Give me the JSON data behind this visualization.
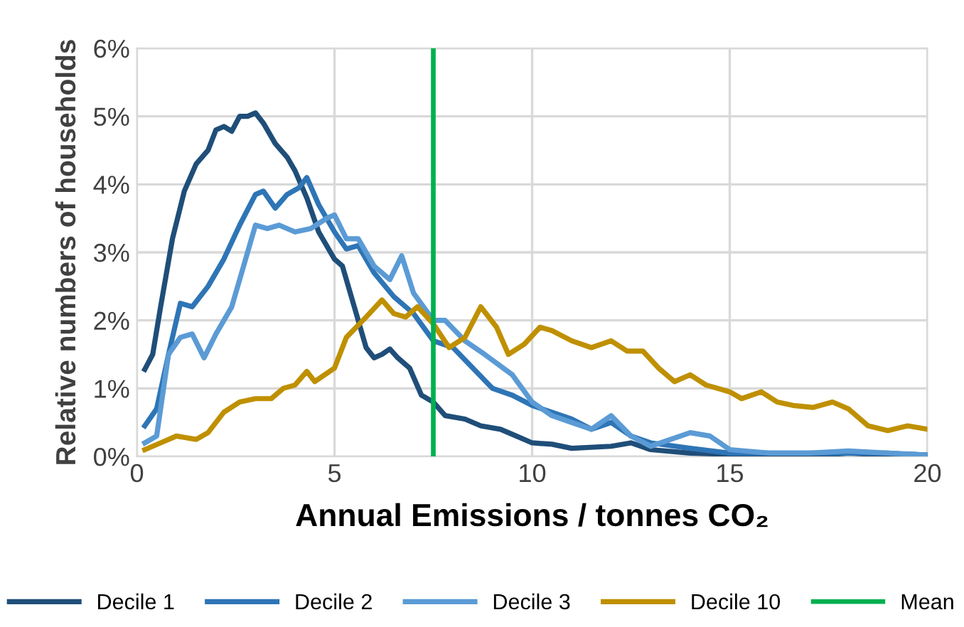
{
  "chart_data": {
    "type": "line",
    "xlabel": "Annual Emissions / tonnes CO₂",
    "ylabel": "Relative numbers of households",
    "xlim": [
      0,
      20
    ],
    "xticks": [
      0,
      5,
      10,
      15,
      20
    ],
    "ylim": [
      0,
      6
    ],
    "yticks": [
      {
        "value": 0,
        "label": "0%"
      },
      {
        "value": 1,
        "label": "1%"
      },
      {
        "value": 2,
        "label": "2%"
      },
      {
        "value": 3,
        "label": "3%"
      },
      {
        "value": 4,
        "label": "4%"
      },
      {
        "value": 5,
        "label": "5%"
      },
      {
        "value": 6,
        "label": "6%"
      }
    ],
    "grid": true,
    "legend": "bottom",
    "marker": "none",
    "line_style": "solid",
    "series": [
      {
        "name": "Decile 1",
        "color": "#1f4e79",
        "x": [
          0.2,
          0.4,
          0.6,
          0.9,
          1.2,
          1.5,
          1.8,
          2.0,
          2.2,
          2.4,
          2.6,
          2.8,
          3.0,
          3.2,
          3.5,
          3.8,
          4.0,
          4.3,
          4.6,
          5.0,
          5.2,
          5.5,
          5.8,
          6.0,
          6.2,
          6.4,
          6.6,
          6.9,
          7.2,
          7.5,
          7.8,
          8.3,
          8.7,
          9.2,
          9.6,
          10,
          10.5,
          11,
          12,
          12.5,
          13,
          14,
          15,
          16,
          17,
          18,
          19,
          20
        ],
        "values": [
          1.28,
          1.5,
          2.2,
          3.2,
          3.9,
          4.3,
          4.5,
          4.8,
          4.85,
          4.78,
          5.0,
          5.0,
          5.05,
          4.9,
          4.6,
          4.4,
          4.2,
          3.8,
          3.3,
          2.9,
          2.8,
          2.2,
          1.6,
          1.45,
          1.5,
          1.58,
          1.45,
          1.3,
          0.9,
          0.8,
          0.6,
          0.55,
          0.45,
          0.4,
          0.3,
          0.2,
          0.18,
          0.12,
          0.15,
          0.2,
          0.1,
          0.05,
          0.03,
          0.02,
          0.0,
          0.05,
          0.02,
          0.02
        ]
      },
      {
        "name": "Decile 2",
        "color": "#2e75b6",
        "x": [
          0.2,
          0.5,
          0.8,
          1.1,
          1.4,
          1.8,
          2.2,
          2.6,
          3.0,
          3.2,
          3.5,
          3.8,
          4.1,
          4.3,
          4.6,
          5.0,
          5.3,
          5.6,
          6.0,
          6.5,
          7.0,
          7.5,
          8,
          8.5,
          9,
          9.5,
          10,
          10.5,
          11,
          11.5,
          12,
          12.5,
          13,
          14,
          15,
          16,
          17,
          18,
          19,
          20
        ],
        "values": [
          0.45,
          0.7,
          1.5,
          2.25,
          2.2,
          2.5,
          2.9,
          3.4,
          3.85,
          3.9,
          3.65,
          3.85,
          3.95,
          4.1,
          3.7,
          3.3,
          3.05,
          3.1,
          2.7,
          2.35,
          2.1,
          1.7,
          1.6,
          1.3,
          1.0,
          0.9,
          0.75,
          0.65,
          0.55,
          0.4,
          0.5,
          0.3,
          0.2,
          0.12,
          0.05,
          0.05,
          0.05,
          0.05,
          0.05,
          0.02
        ]
      },
      {
        "name": "Decile 3",
        "color": "#5b9bd5",
        "x": [
          0.2,
          0.5,
          0.8,
          1.1,
          1.4,
          1.7,
          2.0,
          2.4,
          2.7,
          3.0,
          3.3,
          3.6,
          4.0,
          4.4,
          4.8,
          5.0,
          5.3,
          5.6,
          6.0,
          6.4,
          6.7,
          7.0,
          7.5,
          7.8,
          8.3,
          8.8,
          9.5,
          10,
          10.5,
          11,
          11.5,
          12,
          12.5,
          13,
          14,
          14.5,
          15,
          16,
          17,
          18,
          19,
          20
        ],
        "values": [
          0.2,
          0.3,
          1.5,
          1.75,
          1.8,
          1.45,
          1.8,
          2.2,
          2.8,
          3.4,
          3.35,
          3.4,
          3.3,
          3.35,
          3.5,
          3.55,
          3.2,
          3.2,
          2.8,
          2.6,
          2.95,
          2.4,
          2.0,
          2.0,
          1.7,
          1.5,
          1.2,
          0.8,
          0.6,
          0.5,
          0.4,
          0.6,
          0.3,
          0.15,
          0.35,
          0.3,
          0.1,
          0.05,
          0.05,
          0.08,
          0.05,
          0.02
        ]
      },
      {
        "name": "Decile 10",
        "color": "#bf9000",
        "x": [
          0.2,
          0.6,
          1.0,
          1.5,
          1.8,
          2.2,
          2.6,
          3.0,
          3.4,
          3.7,
          4.0,
          4.3,
          4.5,
          5.0,
          5.3,
          5.8,
          6.2,
          6.5,
          6.8,
          7.1,
          7.5,
          7.9,
          8.3,
          8.7,
          9.1,
          9.4,
          9.8,
          10.2,
          10.5,
          11,
          11.5,
          12,
          12.4,
          12.8,
          13.2,
          13.6,
          14.0,
          14.4,
          15.0,
          15.3,
          15.8,
          16.2,
          16.6,
          17.1,
          17.6,
          18.0,
          18.5,
          19,
          19.5,
          20
        ],
        "values": [
          0.1,
          0.2,
          0.3,
          0.25,
          0.35,
          0.65,
          0.8,
          0.85,
          0.85,
          1.0,
          1.05,
          1.25,
          1.1,
          1.3,
          1.75,
          2.05,
          2.3,
          2.1,
          2.05,
          2.2,
          1.95,
          1.6,
          1.75,
          2.2,
          1.9,
          1.5,
          1.65,
          1.9,
          1.85,
          1.7,
          1.6,
          1.7,
          1.55,
          1.55,
          1.3,
          1.1,
          1.2,
          1.05,
          0.95,
          0.85,
          0.95,
          0.8,
          0.75,
          0.72,
          0.8,
          0.7,
          0.45,
          0.38,
          0.45,
          0.4
        ]
      }
    ],
    "ref_lines": [
      {
        "axis": "x",
        "value": 7.5,
        "label": "Mean",
        "color": "#00b050",
        "line_style": "solid"
      }
    ]
  }
}
